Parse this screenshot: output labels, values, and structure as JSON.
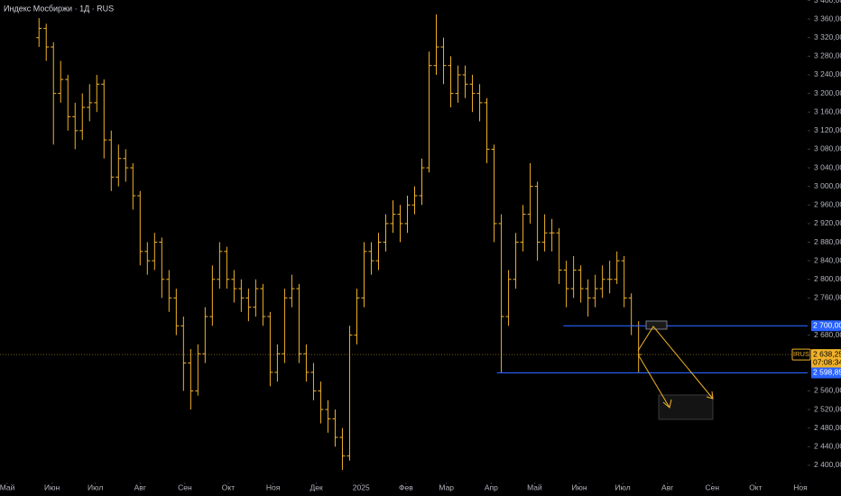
{
  "chart_data": {
    "type": "ohlc",
    "title": "Индекс Мосбиржи · 1Д · RUS",
    "color": "#f0b22a",
    "background": "#000000",
    "grid": false,
    "xlim": [
      -5,
      554
    ],
    "ylim": [
      2363,
      3401
    ],
    "xticks": [
      {
        "value": 0,
        "label": "Май"
      },
      {
        "value": 31,
        "label": "Июн"
      },
      {
        "value": 61,
        "label": "Июл"
      },
      {
        "value": 92,
        "label": "Авг"
      },
      {
        "value": 123,
        "label": "Сен"
      },
      {
        "value": 153,
        "label": "Окт"
      },
      {
        "value": 184,
        "label": "Ноя"
      },
      {
        "value": 214,
        "label": "Дек"
      },
      {
        "value": 245,
        "label": "2025"
      },
      {
        "value": 276,
        "label": "Фев"
      },
      {
        "value": 304,
        "label": "Мар"
      },
      {
        "value": 335,
        "label": "Апр"
      },
      {
        "value": 365,
        "label": "Май"
      },
      {
        "value": 396,
        "label": "Июн"
      },
      {
        "value": 426,
        "label": "Июл"
      },
      {
        "value": 457,
        "label": "Авг"
      },
      {
        "value": 488,
        "label": "Сен"
      },
      {
        "value": 518,
        "label": "Окт"
      },
      {
        "value": 549,
        "label": "Ноя"
      }
    ],
    "yticks": [
      {
        "value": 2400,
        "label": "2 400,00"
      },
      {
        "value": 2440,
        "label": "2 440,00"
      },
      {
        "value": 2480,
        "label": "2 480,00"
      },
      {
        "value": 2520,
        "label": "2 520,00"
      },
      {
        "value": 2560,
        "label": "2 560,00"
      },
      {
        "value": 2680,
        "label": "2 680,00"
      },
      {
        "value": 2760,
        "label": "2 760,00"
      },
      {
        "value": 2800,
        "label": "2 800,00"
      },
      {
        "value": 2840,
        "label": "2 840,00"
      },
      {
        "value": 2880,
        "label": "2 880,00"
      },
      {
        "value": 2920,
        "label": "2 920,00"
      },
      {
        "value": 2960,
        "label": "2 960,00"
      },
      {
        "value": 3000,
        "label": "3 000,00"
      },
      {
        "value": 3040,
        "label": "3 040,00"
      },
      {
        "value": 3080,
        "label": "3 080,00"
      },
      {
        "value": 3120,
        "label": "3 120,00"
      },
      {
        "value": 3160,
        "label": "3 160,00"
      },
      {
        "value": 3200,
        "label": "3 200,00"
      },
      {
        "value": 3240,
        "label": "3 240,00"
      },
      {
        "value": 3280,
        "label": "3 280,00"
      },
      {
        "value": 3320,
        "label": "3 320,00"
      },
      {
        "value": 3360,
        "label": "3 360,00"
      },
      {
        "value": 3400,
        "label": "3 400,00"
      }
    ],
    "x": [
      22,
      27,
      32,
      37,
      42,
      47,
      52,
      57,
      62,
      67,
      72,
      77,
      82,
      87,
      92,
      97,
      102,
      107,
      112,
      117,
      122,
      127,
      132,
      137,
      142,
      147,
      152,
      157,
      162,
      167,
      172,
      177,
      182,
      187,
      192,
      197,
      202,
      207,
      212,
      217,
      222,
      227,
      232,
      237,
      242,
      247,
      252,
      257,
      262,
      267,
      272,
      277,
      282,
      287,
      292,
      297,
      302,
      307,
      312,
      317,
      322,
      327,
      332,
      337,
      342,
      347,
      352,
      357,
      362,
      367,
      372,
      377,
      382,
      387,
      392,
      397,
      402,
      407,
      412,
      417,
      422,
      427,
      432,
      437
    ],
    "ohlc": [
      [
        3320,
        3362,
        3300,
        3340
      ],
      [
        3340,
        3350,
        3270,
        3300
      ],
      [
        3300,
        3310,
        3090,
        3200
      ],
      [
        3200,
        3270,
        3180,
        3230
      ],
      [
        3230,
        3240,
        3120,
        3150
      ],
      [
        3150,
        3180,
        3080,
        3120
      ],
      [
        3120,
        3200,
        3100,
        3170
      ],
      [
        3170,
        3220,
        3140,
        3180
      ],
      [
        3180,
        3240,
        3160,
        3220
      ],
      [
        3220,
        3230,
        3060,
        3100
      ],
      [
        3100,
        3120,
        2990,
        3020
      ],
      [
        3020,
        3090,
        3000,
        3060
      ],
      [
        3060,
        3080,
        3010,
        3040
      ],
      [
        3040,
        3050,
        2950,
        2980
      ],
      [
        2980,
        2990,
        2830,
        2860
      ],
      [
        2860,
        2880,
        2810,
        2840
      ],
      [
        2840,
        2900,
        2820,
        2880
      ],
      [
        2880,
        2890,
        2760,
        2800
      ],
      [
        2800,
        2820,
        2730,
        2760
      ],
      [
        2760,
        2780,
        2680,
        2700
      ],
      [
        2700,
        2720,
        2560,
        2620
      ],
      [
        2620,
        2650,
        2520,
        2560
      ],
      [
        2560,
        2660,
        2550,
        2640
      ],
      [
        2640,
        2740,
        2620,
        2720
      ],
      [
        2720,
        2830,
        2700,
        2800
      ],
      [
        2800,
        2880,
        2780,
        2860
      ],
      [
        2860,
        2870,
        2780,
        2800
      ],
      [
        2800,
        2820,
        2750,
        2780
      ],
      [
        2780,
        2800,
        2730,
        2760
      ],
      [
        2760,
        2780,
        2710,
        2740
      ],
      [
        2740,
        2800,
        2720,
        2780
      ],
      [
        2780,
        2790,
        2700,
        2720
      ],
      [
        2720,
        2730,
        2570,
        2600
      ],
      [
        2600,
        2660,
        2580,
        2640
      ],
      [
        2640,
        2780,
        2620,
        2760
      ],
      [
        2760,
        2810,
        2740,
        2780
      ],
      [
        2780,
        2790,
        2620,
        2640
      ],
      [
        2640,
        2660,
        2580,
        2600
      ],
      [
        2600,
        2620,
        2540,
        2560
      ],
      [
        2560,
        2580,
        2490,
        2520
      ],
      [
        2520,
        2540,
        2470,
        2500
      ],
      [
        2500,
        2520,
        2440,
        2460
      ],
      [
        2460,
        2480,
        2390,
        2420
      ],
      [
        2420,
        2700,
        2410,
        2680
      ],
      [
        2680,
        2780,
        2660,
        2760
      ],
      [
        2760,
        2880,
        2740,
        2860
      ],
      [
        2860,
        2880,
        2810,
        2840
      ],
      [
        2840,
        2900,
        2820,
        2880
      ],
      [
        2880,
        2940,
        2860,
        2920
      ],
      [
        2920,
        2970,
        2900,
        2940
      ],
      [
        2940,
        2960,
        2880,
        2920
      ],
      [
        2920,
        2980,
        2900,
        2960
      ],
      [
        2960,
        3000,
        2940,
        2980
      ],
      [
        2980,
        3060,
        2960,
        3040
      ],
      [
        3040,
        3290,
        3030,
        3260
      ],
      [
        3260,
        3370,
        3240,
        3300
      ],
      [
        3300,
        3320,
        3220,
        3260
      ],
      [
        3260,
        3280,
        3170,
        3200
      ],
      [
        3200,
        3260,
        3180,
        3240
      ],
      [
        3240,
        3260,
        3190,
        3220
      ],
      [
        3220,
        3240,
        3160,
        3200
      ],
      [
        3200,
        3220,
        3140,
        3180
      ],
      [
        3180,
        3190,
        3050,
        3080
      ],
      [
        3080,
        3090,
        2880,
        2920
      ],
      [
        2920,
        2940,
        2600,
        2720
      ],
      [
        2720,
        2820,
        2700,
        2800
      ],
      [
        2800,
        2900,
        2780,
        2880
      ],
      [
        2880,
        2960,
        2860,
        2940
      ],
      [
        2940,
        3050,
        2920,
        3000
      ],
      [
        3000,
        3010,
        2840,
        2880
      ],
      [
        2880,
        2940,
        2860,
        2900
      ],
      [
        2900,
        2930,
        2860,
        2900
      ],
      [
        2900,
        2910,
        2790,
        2820
      ],
      [
        2820,
        2840,
        2740,
        2780
      ],
      [
        2780,
        2850,
        2760,
        2820
      ],
      [
        2820,
        2830,
        2750,
        2780
      ],
      [
        2780,
        2800,
        2720,
        2760
      ],
      [
        2760,
        2810,
        2740,
        2780
      ],
      [
        2780,
        2830,
        2760,
        2800
      ],
      [
        2800,
        2840,
        2770,
        2800
      ],
      [
        2800,
        2860,
        2790,
        2840
      ],
      [
        2840,
        2850,
        2740,
        2760
      ],
      [
        2760,
        2770,
        2680,
        2700
      ],
      [
        2700,
        2710,
        2600,
        2638.25
      ]
    ],
    "levels": [
      {
        "value": 2700,
        "label": "2 700,00",
        "start_x": 385,
        "color": "#2962ff"
      },
      {
        "value": 2598.85,
        "label": "2 598,85",
        "start_x": 339,
        "color": "#2962ff"
      }
    ],
    "last": {
      "value": 2638.25,
      "label": "2 638,25",
      "symbol": "IRUS",
      "timer": "07:08:34",
      "color": "#f0b22a"
    }
  }
}
